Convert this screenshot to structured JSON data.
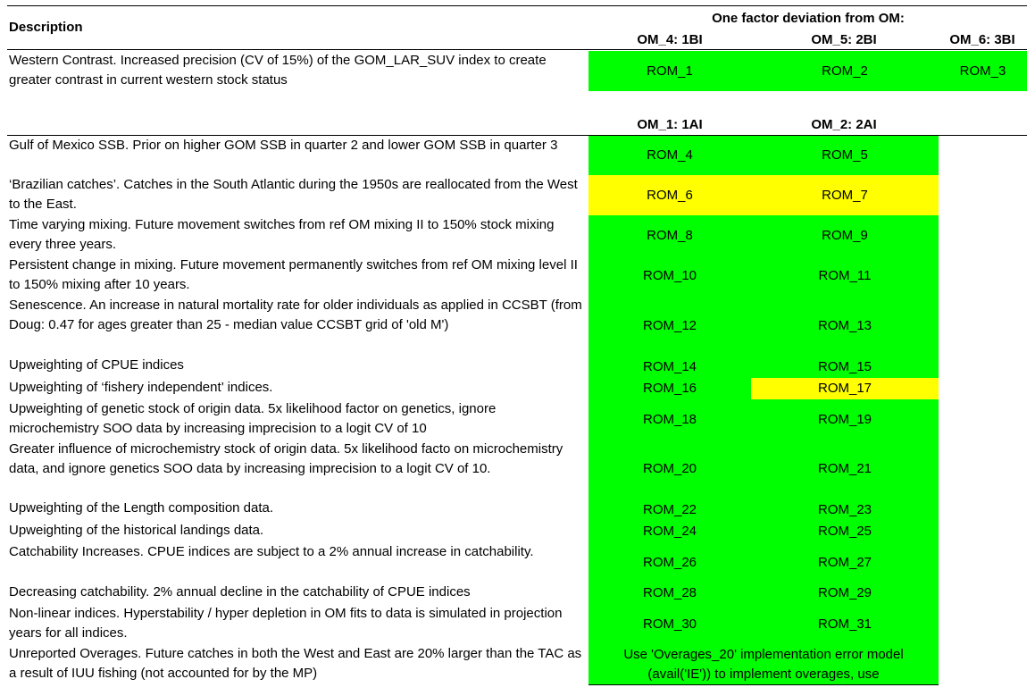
{
  "header": {
    "description_label": "Description",
    "deviation_label": "One factor deviation from OM:",
    "om4": "OM_4: 1BI",
    "om5": "OM_5: 2BI",
    "om6": "OM_6: 3BI",
    "om1": "OM_1: 1AI",
    "om2": "OM_2: 2AI"
  },
  "colors": {
    "green": "#00ff00",
    "yellow": "#ffff00"
  },
  "rows": [
    {
      "desc": "Western Contrast. Increased precision (CV of 15%) of the GOM_LAR_SUV index to create greater contrast in current western stock status",
      "c1": "ROM_1",
      "c2": "ROM_2",
      "c3": "ROM_3"
    },
    {
      "desc": "Gulf of Mexico SSB. Prior on higher GOM SSB in quarter 2 and lower GOM SSB in quarter 3",
      "c1": "ROM_4",
      "c2": "ROM_5"
    },
    {
      "desc": "‘Brazilian catches’. Catches in the South Atlantic during the 1950s are reallocated from the West to the East.",
      "c1": "ROM_6",
      "c2": "ROM_7"
    },
    {
      "desc": "Time varying mixing. Future movement switches from ref OM mixing II to 150% stock mixing every three years.",
      "c1": "ROM_8",
      "c2": "ROM_9"
    },
    {
      "desc": "Persistent change in mixing. Future movement permanently switches from ref OM mixing level II to 150% mixing after 10 years.",
      "c1": "ROM_10",
      "c2": "ROM_11"
    },
    {
      "desc": "Senescence. An increase in natural mortality rate for older individuals as applied in CCSBT (from Doug: 0.47 for ages greater than 25 - median value CCSBT grid of 'old M')",
      "c1": "ROM_12",
      "c2": "ROM_13"
    },
    {
      "desc": "Upweighting of CPUE indices",
      "c1": "ROM_14",
      "c2": "ROM_15"
    },
    {
      "desc": "Upweighting of ‘fishery independent’ indices.",
      "c1": "ROM_16",
      "c2": "ROM_17"
    },
    {
      "desc": "Upweighting of genetic stock of origin data. 5x likelihood factor on genetics, ignore microchemistry SOO data by increasing imprecision to a logit CV of 10",
      "c1": "ROM_18",
      "c2": "ROM_19"
    },
    {
      "desc": "Greater influence of microchemistry stock of origin data. 5x likelihood facto on microchemistry data, and ignore genetics SOO data by increasing imprecision to a logit CV of 10.",
      "c1": "ROM_20",
      "c2": "ROM_21"
    },
    {
      "desc": "Upweighting of the Length composition data.",
      "c1": "ROM_22",
      "c2": "ROM_23"
    },
    {
      "desc": "Upweighting of the historical landings data.",
      "c1": "ROM_24",
      "c2": "ROM_25"
    },
    {
      "desc": "Catchability Increases. CPUE indices are subject to a 2% annual increase in catchability.",
      "c1": "ROM_26",
      "c2": "ROM_27"
    },
    {
      "desc": "Decreasing catchability. 2% annual decline in the catchability of CPUE indices",
      "c1": "ROM_28",
      "c2": "ROM_29"
    },
    {
      "desc": "Non-linear indices. Hyperstability / hyper depletion in OM fits to data is simulated in projection years for all indices.",
      "c1": "ROM_30",
      "c2": "ROM_31"
    },
    {
      "desc": "Unreported Overages. Future catches in both the West and East are 20% larger than the TAC as a result of IUU fishing (not accounted for by the MP)",
      "merged": "Use 'Overages_20' implementation error model (avail('IE')) to implement overages, use"
    }
  ]
}
